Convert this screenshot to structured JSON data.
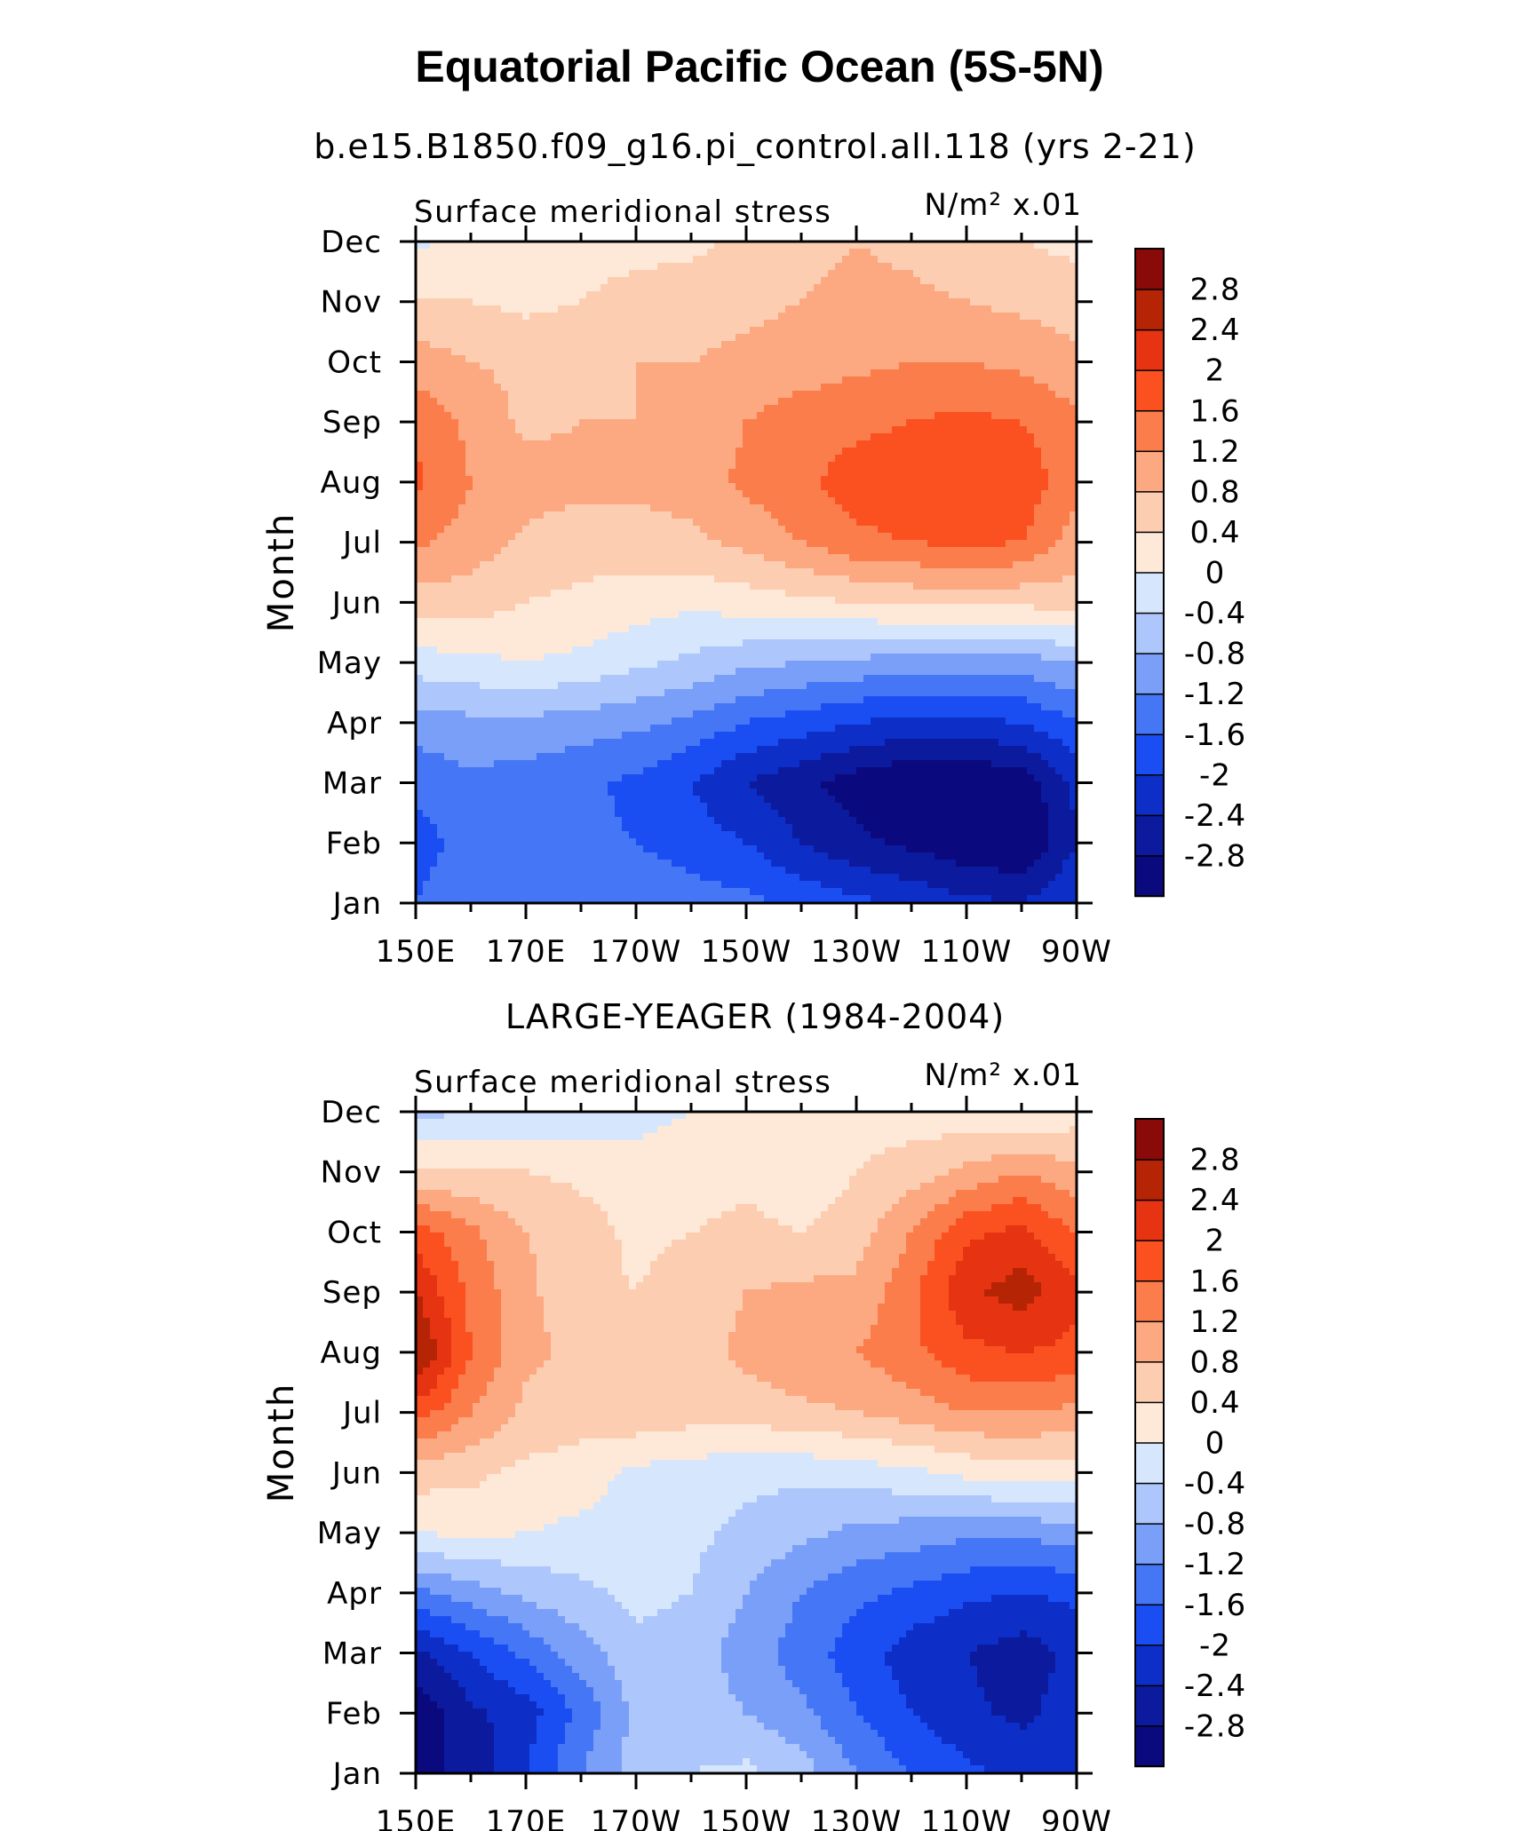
{
  "title": "Equatorial Pacific Ocean (5S-5N)",
  "colorbar": {
    "colors": [
      "#0a0a7e",
      "#0c1a9d",
      "#0d2fc8",
      "#1b4ef2",
      "#4576f6",
      "#7a9ff8",
      "#adc6fb",
      "#d6e6fc",
      "#fee9d8",
      "#fdcdb1",
      "#fca880",
      "#fb7d4c",
      "#fb5120",
      "#e63311",
      "#b62406",
      "#8a0a0a"
    ],
    "levels": [
      -2.8,
      -2.4,
      -2,
      -1.6,
      -1.2,
      -0.8,
      -0.4,
      0,
      0.4,
      0.8,
      1.2,
      1.6,
      2,
      2.4,
      2.8
    ],
    "labels": [
      "-2.8",
      "-2.4",
      "-2",
      "-1.6",
      "-1.2",
      "-0.8",
      "-0.4",
      "0",
      "0.4",
      "0.8",
      "1.2",
      "1.6",
      "2",
      "2.4",
      "2.8"
    ]
  },
  "chart_data": [
    {
      "type": "heatmap",
      "title": "b.e15.B1850.f09_g16.pi_control.all.118 (yrs 2-21)",
      "subtitle_left": "Surface meridional stress",
      "units": "N/m² x.01",
      "xlabel": "",
      "ylabel": "Month",
      "x_ticks": [
        "150E",
        "170E",
        "170W",
        "150W",
        "130W",
        "110W",
        "90W"
      ],
      "y_ticks": [
        "Jan",
        "Feb",
        "Mar",
        "Apr",
        "May",
        "Jun",
        "Jul",
        "Aug",
        "Sep",
        "Oct",
        "Nov",
        "Dec"
      ],
      "lon": [
        150,
        160,
        170,
        180,
        190,
        200,
        210,
        220,
        230,
        240,
        250,
        260,
        270
      ],
      "values": [
        [
          -1.6,
          -1.3,
          -1.2,
          -1.2,
          -1.3,
          -1.4,
          -1.5,
          -1.7,
          -1.9,
          -2.1,
          -2.3,
          -2.4,
          -2.0
        ],
        [
          -1.8,
          -1.4,
          -1.4,
          -1.5,
          -1.6,
          -1.8,
          -2.0,
          -2.4,
          -2.7,
          -2.9,
          -3.1,
          -3.2,
          -2.4
        ],
        [
          -1.5,
          -1.3,
          -1.4,
          -1.5,
          -1.7,
          -2.0,
          -2.4,
          -2.7,
          -3.0,
          -3.2,
          -3.2,
          -3.1,
          -2.3
        ],
        [
          -1.0,
          -0.9,
          -0.9,
          -1.0,
          -1.1,
          -1.3,
          -1.6,
          -1.8,
          -2.0,
          -2.1,
          -2.1,
          -2.0,
          -1.6
        ],
        [
          -0.2,
          -0.1,
          0.0,
          -0.1,
          -0.3,
          -0.5,
          -0.7,
          -0.8,
          -0.9,
          -1.0,
          -1.0,
          -1.0,
          -0.8
        ],
        [
          0.6,
          0.6,
          0.4,
          0.3,
          0.2,
          0.1,
          0.2,
          0.3,
          0.4,
          0.5,
          0.5,
          0.5,
          0.6
        ],
        [
          1.3,
          1.0,
          0.7,
          0.6,
          0.6,
          0.7,
          0.9,
          1.2,
          1.5,
          1.6,
          1.7,
          1.6,
          1.0
        ],
        [
          1.7,
          1.2,
          1.0,
          0.9,
          0.9,
          1.0,
          1.3,
          1.5,
          1.8,
          1.9,
          2.0,
          1.9,
          1.3
        ],
        [
          1.5,
          1.1,
          0.7,
          0.8,
          0.8,
          0.9,
          1.2,
          1.4,
          1.5,
          1.6,
          1.7,
          1.6,
          1.3
        ],
        [
          1.0,
          0.8,
          0.7,
          0.7,
          0.8,
          0.8,
          0.9,
          1.0,
          1.1,
          1.2,
          1.2,
          1.1,
          0.9
        ],
        [
          0.4,
          0.4,
          0.3,
          0.4,
          0.5,
          0.6,
          0.7,
          0.8,
          0.9,
          0.9,
          0.8,
          0.7,
          0.6
        ],
        [
          -0.1,
          0.2,
          0.3,
          0.3,
          0.3,
          0.3,
          0.5,
          0.7,
          0.8,
          0.7,
          0.5,
          0.4,
          0.3
        ]
      ]
    },
    {
      "type": "heatmap",
      "title": "LARGE-YEAGER (1984-2004)",
      "subtitle_left": "Surface meridional stress",
      "units": "N/m² x.01",
      "xlabel": "",
      "ylabel": "Month",
      "x_ticks": [
        "150E",
        "170E",
        "170W",
        "150W",
        "130W",
        "110W",
        "90W"
      ],
      "y_ticks": [
        "Jan",
        "Feb",
        "Mar",
        "Apr",
        "May",
        "Jun",
        "Jul",
        "Aug",
        "Sep",
        "Oct",
        "Nov",
        "Dec"
      ],
      "lon": [
        150,
        160,
        170,
        180,
        190,
        200,
        210,
        220,
        230,
        240,
        250,
        260,
        270
      ],
      "values": [
        [
          -2.9,
          -2.7,
          -2.0,
          -1.2,
          -0.6,
          -0.4,
          -0.3,
          -0.6,
          -1.2,
          -1.6,
          -1.9,
          -2.1,
          -2.0
        ],
        [
          -3.1,
          -2.5,
          -2.2,
          -1.5,
          -0.7,
          -0.6,
          -0.8,
          -1.1,
          -1.6,
          -2.0,
          -2.3,
          -2.5,
          -2.2
        ],
        [
          -2.5,
          -2.0,
          -1.5,
          -1.0,
          -0.5,
          -0.6,
          -1.0,
          -1.4,
          -1.8,
          -2.2,
          -2.4,
          -2.6,
          -2.3
        ],
        [
          -1.3,
          -1.0,
          -0.7,
          -0.5,
          -0.3,
          -0.4,
          -0.8,
          -1.2,
          -1.5,
          -1.7,
          -1.9,
          -2.0,
          -1.9
        ],
        [
          0.0,
          0.1,
          0.0,
          -0.1,
          -0.2,
          -0.3,
          -0.5,
          -0.7,
          -0.9,
          -1.0,
          -1.1,
          -1.1,
          -1.0
        ],
        [
          0.6,
          0.5,
          0.3,
          0.2,
          -0.1,
          -0.2,
          -0.3,
          -0.3,
          -0.2,
          -0.1,
          0.1,
          0.2,
          0.2
        ],
        [
          1.8,
          1.2,
          0.7,
          0.6,
          0.7,
          0.6,
          0.6,
          0.7,
          0.8,
          1.0,
          1.2,
          1.2,
          1.1
        ],
        [
          2.9,
          1.6,
          0.9,
          0.7,
          0.5,
          0.6,
          0.9,
          1.1,
          1.2,
          1.5,
          1.9,
          2.0,
          1.9
        ],
        [
          2.4,
          1.5,
          0.9,
          0.5,
          0.4,
          0.6,
          0.8,
          0.9,
          0.9,
          1.5,
          2.3,
          2.6,
          2.1
        ],
        [
          1.8,
          1.3,
          0.8,
          0.6,
          0.3,
          0.4,
          0.5,
          0.4,
          0.6,
          1.2,
          1.9,
          2.1,
          1.6
        ],
        [
          0.5,
          0.4,
          0.4,
          0.3,
          0.1,
          0.2,
          0.3,
          0.1,
          0.4,
          0.6,
          0.9,
          1.2,
          0.9
        ],
        [
          -0.5,
          -0.4,
          -0.3,
          -0.3,
          -0.1,
          0.0,
          0.1,
          0.1,
          0.2,
          0.2,
          0.1,
          0.0,
          0.2
        ]
      ]
    }
  ]
}
